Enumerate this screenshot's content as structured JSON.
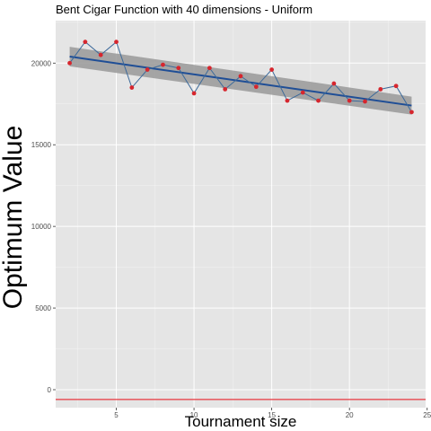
{
  "chart_data": {
    "type": "line",
    "title": "Bent Cigar Function with 40 dimensions -  Uniform",
    "xlabel": "Tournament size",
    "ylabel": "Optimum Value",
    "xlim": [
      1.1,
      24.9
    ],
    "ylim": [
      -1100,
      22600
    ],
    "x_ticks": [
      5,
      10,
      15,
      20,
      25
    ],
    "y_ticks": [
      0,
      5000,
      10000,
      15000,
      20000
    ],
    "grid": true,
    "series": [
      {
        "x": [
          2,
          3,
          4,
          5,
          6,
          7,
          8,
          9,
          10,
          11,
          12,
          13,
          14,
          15,
          16,
          17,
          18,
          19,
          20,
          21,
          22,
          23,
          24
        ],
        "values": [
          20000,
          21300,
          20500,
          21300,
          18500,
          19600,
          19900,
          19700,
          18150,
          19700,
          18400,
          19200,
          18550,
          19600,
          17700,
          18200,
          17700,
          18750,
          17700,
          17650,
          18400,
          18600,
          17000
        ]
      }
    ],
    "trend_line": {
      "x": [
        2,
        24
      ],
      "y": [
        20400,
        17400
      ],
      "band_halfwidth": [
        600,
        550
      ]
    },
    "reference_line": {
      "y": -600
    },
    "colors": {
      "panel": "#e5e5e5",
      "grid_major": "#ffffff",
      "line": "#3d6a9a",
      "points": "#d6262e",
      "trend": "#1f4e96",
      "band": "#999999",
      "reference": "#e8373e"
    }
  }
}
